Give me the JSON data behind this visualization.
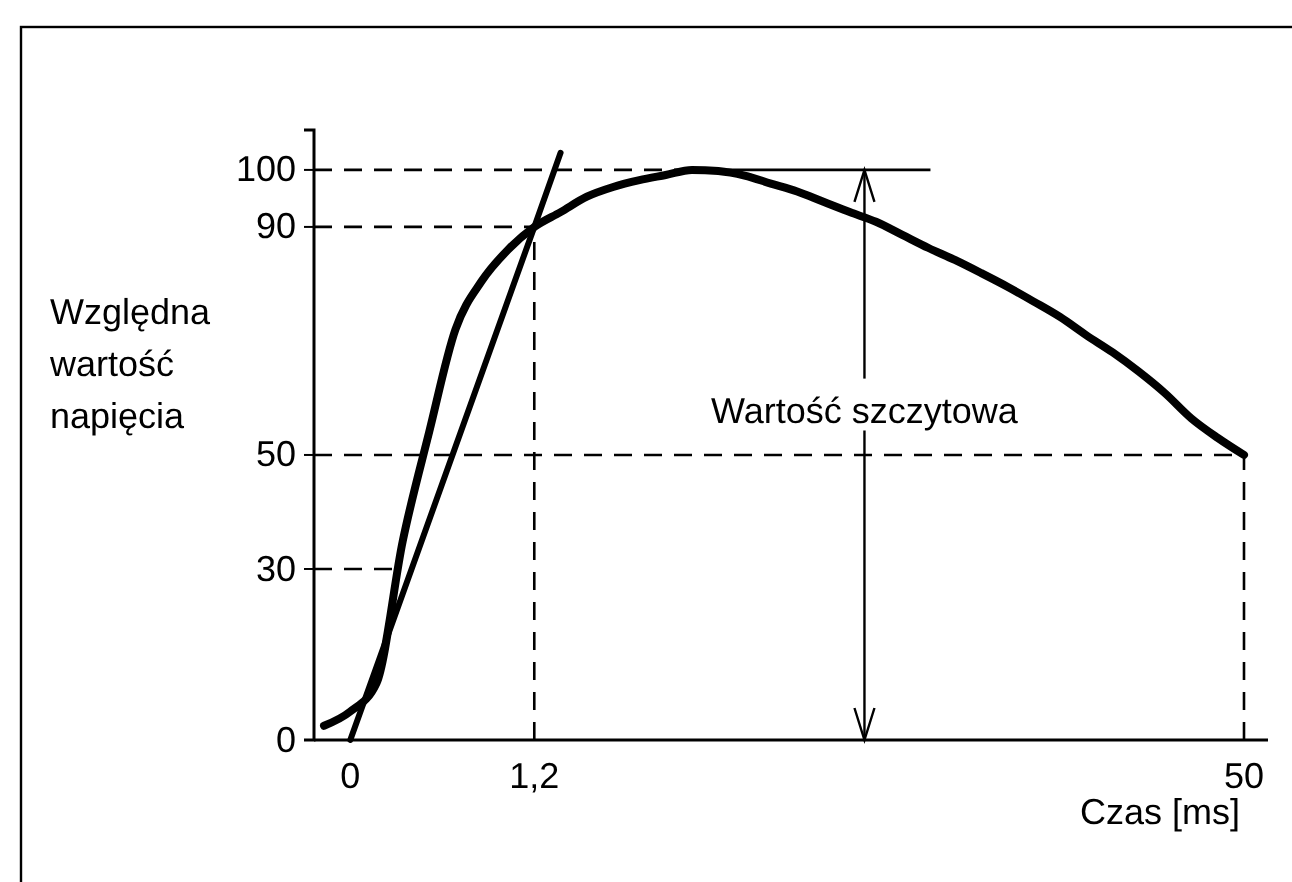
{
  "chart_data": {
    "type": "line",
    "xlabel": "Czas [ms]",
    "ylabel": "Względna wartość napięcia",
    "categories": [
      null,
      "0",
      null,
      null,
      null,
      null,
      null,
      null,
      "1,2",
      null,
      null,
      null,
      null,
      null,
      null,
      null,
      null,
      null,
      null,
      null,
      null,
      null,
      null,
      null,
      null,
      null,
      null,
      null,
      null,
      null,
      null,
      null,
      null,
      null,
      null,
      "50"
    ],
    "ylim": [
      0,
      107
    ],
    "yticks": [
      0,
      30,
      50,
      90,
      100
    ],
    "series": [
      {
        "color": "#000000",
        "values": [
          2.5,
          5,
          10,
          35,
          54,
          72,
          80.5,
          86,
          90,
          92.6,
          95.3,
          97,
          98.2,
          99.1,
          100,
          99.8,
          99,
          97.6,
          96.2,
          94.4,
          92.6,
          90.9,
          88.6,
          86.3,
          84.2,
          81.9,
          79.5,
          76.9,
          74.2,
          71,
          68,
          64.6,
          60.8,
          56.4,
          53,
          50
        ]
      },
      {
        "color": "#000000",
        "values": [
          null,
          0,
          null,
          null,
          null,
          null,
          null,
          null,
          90,
          103,
          null,
          null,
          null,
          null,
          null,
          null,
          null,
          null,
          null,
          null,
          null,
          null,
          null,
          null,
          null,
          null,
          null,
          null,
          null,
          null,
          null,
          null,
          null,
          null,
          null,
          null
        ]
      }
    ],
    "ref_lines": [
      {
        "axis": "y",
        "value": 100,
        "line_style": "dashed"
      },
      {
        "axis": "y",
        "value": 90,
        "line_style": "dashed"
      },
      {
        "axis": "y",
        "value": 50,
        "line_style": "dashed"
      },
      {
        "axis": "y",
        "value": 30,
        "line_style": "dashed"
      },
      {
        "axis": "x",
        "value": "1,2",
        "line_style": "dashed"
      },
      {
        "axis": "x",
        "value": "50",
        "line_style": "dashed"
      }
    ],
    "annotations": [
      "Wartość szczytowa"
    ],
    "grid": false,
    "marker": "none",
    "line_style": "solid"
  }
}
